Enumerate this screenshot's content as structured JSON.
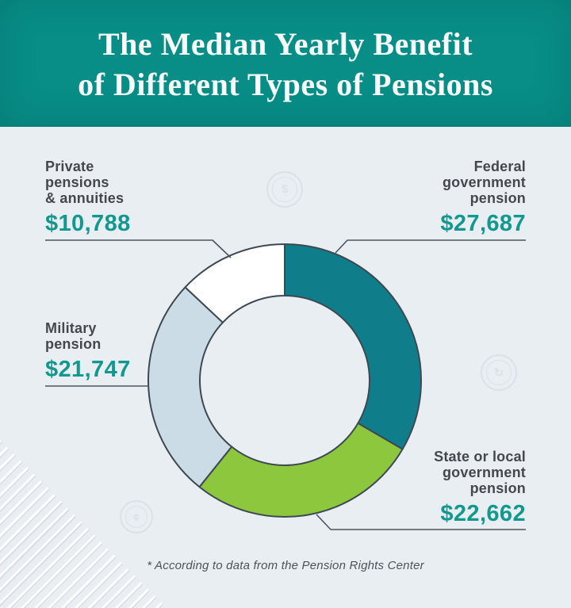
{
  "header": {
    "title_line1": "The Median Yearly Benefit",
    "title_line2": "of Different Types of Pensions"
  },
  "chart_data": {
    "type": "pie",
    "subtype": "donut",
    "title": "The Median Yearly Benefit of Different Types of Pensions",
    "direction": "clockwise",
    "start_angle_deg": 0,
    "legend_position": "callout-labels-around-chart",
    "segments": [
      {
        "id": "federal",
        "label": "Federal government pension",
        "value": 27687,
        "display": "$27,687",
        "color": "#0f7e8a"
      },
      {
        "id": "state",
        "label": "State or local government pension",
        "value": 22662,
        "display": "$22,662",
        "color": "#8dc73e"
      },
      {
        "id": "military",
        "label": "Military pension",
        "value": 21747,
        "display": "$21,747",
        "color": "#cbdce6"
      },
      {
        "id": "private",
        "label": "Private pensions & annuities",
        "value": 10788,
        "display": "$10,788",
        "color": "#ffffff"
      }
    ],
    "footnote": "* According to data from the Pension Rights Center"
  },
  "labels": {
    "private": {
      "lines": [
        "Private",
        "pensions",
        "& annuities"
      ],
      "value": "$10,788"
    },
    "federal": {
      "lines": [
        "Federal",
        "government",
        "pension"
      ],
      "value": "$27,687"
    },
    "military": {
      "lines": [
        "Military",
        "pension"
      ],
      "value": "$21,747"
    },
    "state": {
      "lines": [
        "State or local",
        "government",
        "pension"
      ],
      "value": "$22,662"
    }
  },
  "footnote": "* According to data from the Pension Rights Center",
  "icons": {
    "watermarks": [
      {
        "name": "coin-watermark-icon",
        "glyph": "$"
      },
      {
        "name": "refresh-watermark-icon",
        "glyph": "↻"
      },
      {
        "name": "cent-watermark-icon",
        "glyph": "¢"
      }
    ]
  },
  "colors": {
    "header_background": "#088d87",
    "body_background": "#e9eef2",
    "value_text": "#11988f",
    "label_text": "#45474f",
    "segment_outline": "#3d4852",
    "leader_line": "#4a545e"
  }
}
